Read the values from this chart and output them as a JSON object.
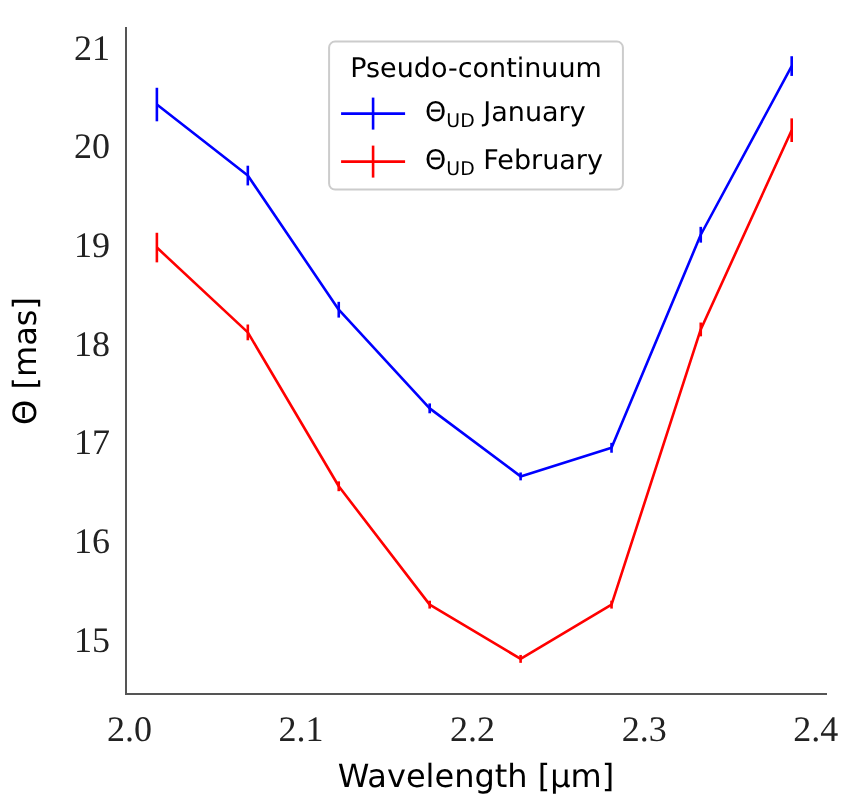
{
  "chart_data": {
    "type": "line",
    "xlabel": "Wavelength [μm]",
    "ylabel": "Θ [mas]",
    "legend_title": "Pseudo-continuum",
    "legend": "top",
    "grid": false,
    "marker": "none",
    "line_style": "solid",
    "x": [
      2.016,
      2.069,
      2.122,
      2.175,
      2.228,
      2.281,
      2.333,
      2.386
    ],
    "xlim": [
      1.998,
      2.406
    ],
    "xticks": [
      {
        "value": 2.0,
        "label": "2.0"
      },
      {
        "value": 2.1,
        "label": "2.1"
      },
      {
        "value": 2.2,
        "label": "2.2"
      },
      {
        "value": 2.3,
        "label": "2.3"
      },
      {
        "value": 2.4,
        "label": "2.4"
      }
    ],
    "ylim": [
      14.47,
      21.23
    ],
    "yticks": [
      15,
      16,
      17,
      18,
      19,
      20,
      21
    ],
    "series": [
      {
        "name": "Θ$_{UD}$ January",
        "color": "#0000ff",
        "values": [
          20.45,
          19.73,
          18.37,
          17.37,
          16.68,
          16.97,
          19.13,
          20.84
        ],
        "errors": [
          0.17,
          0.1,
          0.08,
          0.05,
          0.04,
          0.05,
          0.08,
          0.1
        ]
      },
      {
        "name": "Θ$_{UD}$ February",
        "color": "#ff0000",
        "values": [
          19.0,
          18.14,
          16.58,
          15.38,
          14.83,
          15.38,
          18.17,
          20.19
        ],
        "errors": [
          0.15,
          0.08,
          0.05,
          0.04,
          0.04,
          0.04,
          0.07,
          0.12
        ]
      }
    ]
  }
}
